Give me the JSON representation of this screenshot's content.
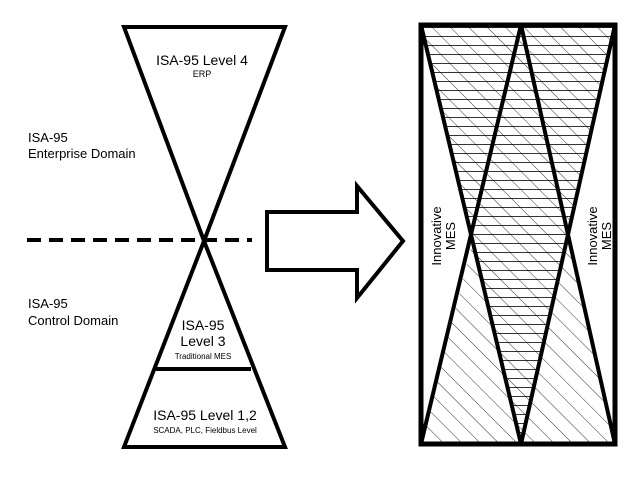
{
  "diagram": {
    "level4": {
      "title": "ISA-95 Level 4",
      "subtitle": "ERP"
    },
    "enterprise_domain": {
      "line1": "ISA-95",
      "line2": "Enterprise Domain"
    },
    "control_domain": {
      "line1": "ISA-95",
      "line2": "Control Domain"
    },
    "level3": {
      "line1": "ISA-95",
      "line2": "Level 3",
      "subtitle": "Traditional MES"
    },
    "level12": {
      "title": "ISA-95 Level 1,2",
      "subtitle": "SCADA, PLC, Fieldbus Level"
    },
    "innovative_left": {
      "line1": "Innovative",
      "line2": "MES"
    },
    "innovative_right": {
      "line1": "Innovative",
      "line2": "MES"
    }
  }
}
